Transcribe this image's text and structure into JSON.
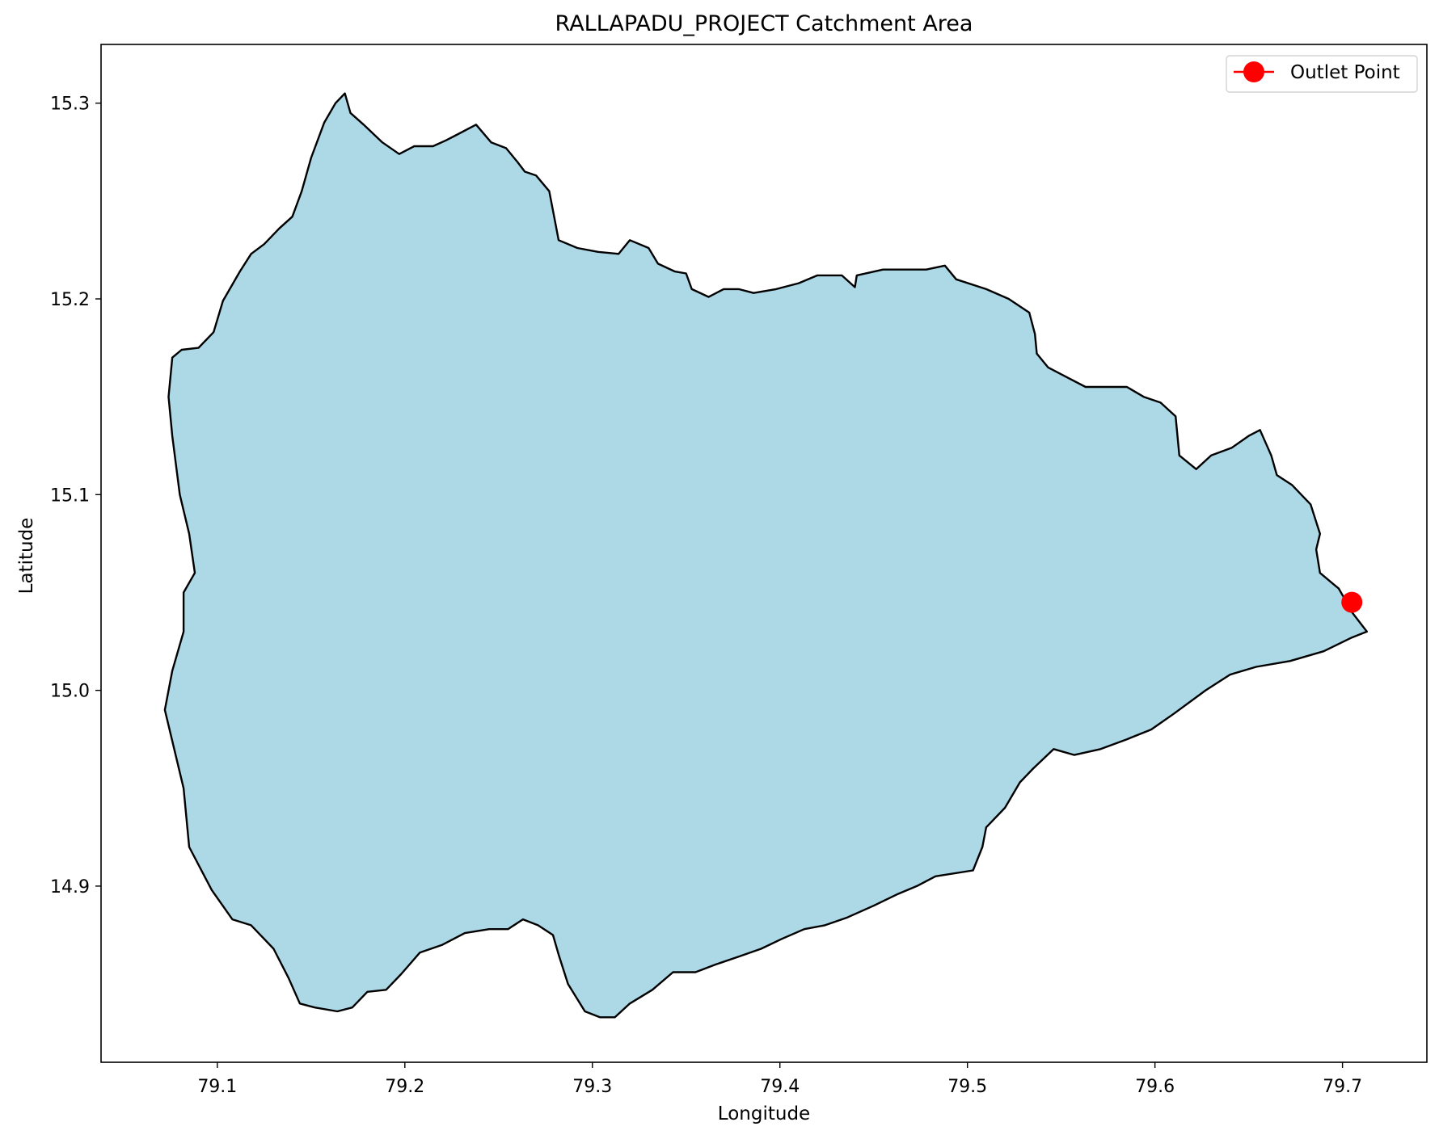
{
  "title": "RALLAPADU_PROJECT Catchment Area",
  "xlabel": "Longitude",
  "ylabel": "Latitude",
  "legend": {
    "label": "Outlet Point",
    "placement": "top-right"
  },
  "colors": {
    "fill": "#add8e6",
    "outline": "#000000",
    "outlet": "#ff0000"
  },
  "chart_data": {
    "type": "map",
    "title": "RALLAPADU_PROJECT Catchment Area",
    "xlabel": "Longitude",
    "ylabel": "Latitude",
    "xlim": [
      79.038,
      79.745
    ],
    "ylim": [
      14.81,
      15.33
    ],
    "xticks": [
      79.1,
      79.2,
      79.3,
      79.4,
      79.5,
      79.6,
      79.7
    ],
    "xtick_labels": [
      "79.1",
      "79.2",
      "79.3",
      "79.4",
      "79.5",
      "79.6",
      "79.7"
    ],
    "yticks": [
      14.9,
      15.0,
      15.1,
      15.2,
      15.3
    ],
    "ytick_labels": [
      "14.9",
      "15.0",
      "15.1",
      "15.2",
      "15.3"
    ],
    "grid": false,
    "legend_placement": "top-right",
    "catchment_boundary": [
      [
        79.168,
        15.305
      ],
      [
        79.171,
        15.295
      ],
      [
        79.178,
        15.289
      ],
      [
        79.188,
        15.28
      ],
      [
        79.197,
        15.274
      ],
      [
        79.205,
        15.278
      ],
      [
        79.215,
        15.278
      ],
      [
        79.222,
        15.281
      ],
      [
        79.228,
        15.284
      ],
      [
        79.238,
        15.289
      ],
      [
        79.246,
        15.28
      ],
      [
        79.254,
        15.277
      ],
      [
        79.26,
        15.27
      ],
      [
        79.264,
        15.265
      ],
      [
        79.27,
        15.263
      ],
      [
        79.277,
        15.255
      ],
      [
        79.28,
        15.24
      ],
      [
        79.282,
        15.23
      ],
      [
        79.292,
        15.226
      ],
      [
        79.303,
        15.224
      ],
      [
        79.314,
        15.223
      ],
      [
        79.32,
        15.23
      ],
      [
        79.33,
        15.226
      ],
      [
        79.335,
        15.218
      ],
      [
        79.344,
        15.214
      ],
      [
        79.35,
        15.213
      ],
      [
        79.353,
        15.205
      ],
      [
        79.362,
        15.201
      ],
      [
        79.37,
        15.205
      ],
      [
        79.378,
        15.205
      ],
      [
        79.386,
        15.203
      ],
      [
        79.398,
        15.205
      ],
      [
        79.41,
        15.208
      ],
      [
        79.42,
        15.212
      ],
      [
        79.433,
        15.212
      ],
      [
        79.44,
        15.206
      ],
      [
        79.441,
        15.212
      ],
      [
        79.455,
        15.215
      ],
      [
        79.47,
        15.215
      ],
      [
        79.478,
        15.215
      ],
      [
        79.488,
        15.217
      ],
      [
        79.494,
        15.21
      ],
      [
        79.51,
        15.205
      ],
      [
        79.522,
        15.2
      ],
      [
        79.533,
        15.193
      ],
      [
        79.536,
        15.182
      ],
      [
        79.537,
        15.172
      ],
      [
        79.543,
        15.165
      ],
      [
        79.553,
        15.16
      ],
      [
        79.563,
        15.155
      ],
      [
        79.575,
        15.155
      ],
      [
        79.585,
        15.155
      ],
      [
        79.594,
        15.15
      ],
      [
        79.603,
        15.147
      ],
      [
        79.611,
        15.14
      ],
      [
        79.612,
        15.13
      ],
      [
        79.613,
        15.12
      ],
      [
        79.622,
        15.113
      ],
      [
        79.63,
        15.12
      ],
      [
        79.641,
        15.124
      ],
      [
        79.65,
        15.13
      ],
      [
        79.656,
        15.133
      ],
      [
        79.662,
        15.12
      ],
      [
        79.665,
        15.11
      ],
      [
        79.673,
        15.105
      ],
      [
        79.683,
        15.095
      ],
      [
        79.688,
        15.08
      ],
      [
        79.686,
        15.072
      ],
      [
        79.688,
        15.06
      ],
      [
        79.698,
        15.052
      ],
      [
        79.701,
        15.047
      ],
      [
        79.705,
        15.04
      ],
      [
        79.713,
        15.03
      ],
      [
        79.705,
        15.027
      ],
      [
        79.69,
        15.02
      ],
      [
        79.672,
        15.015
      ],
      [
        79.654,
        15.012
      ],
      [
        79.64,
        15.008
      ],
      [
        79.627,
        15.0
      ],
      [
        79.61,
        14.988
      ],
      [
        79.598,
        14.98
      ],
      [
        79.585,
        14.975
      ],
      [
        79.571,
        14.97
      ],
      [
        79.557,
        14.967
      ],
      [
        79.546,
        14.97
      ],
      [
        79.535,
        14.96
      ],
      [
        79.528,
        14.953
      ],
      [
        79.52,
        14.94
      ],
      [
        79.51,
        14.93
      ],
      [
        79.508,
        14.92
      ],
      [
        79.503,
        14.908
      ],
      [
        79.483,
        14.905
      ],
      [
        79.473,
        14.9
      ],
      [
        79.463,
        14.896
      ],
      [
        79.45,
        14.89
      ],
      [
        79.436,
        14.884
      ],
      [
        79.424,
        14.88
      ],
      [
        79.413,
        14.878
      ],
      [
        79.401,
        14.873
      ],
      [
        79.39,
        14.868
      ],
      [
        79.378,
        14.864
      ],
      [
        79.366,
        14.86
      ],
      [
        79.355,
        14.856
      ],
      [
        79.343,
        14.856
      ],
      [
        79.332,
        14.847
      ],
      [
        79.32,
        14.84
      ],
      [
        79.312,
        14.833
      ],
      [
        79.304,
        14.833
      ],
      [
        79.296,
        14.836
      ],
      [
        79.287,
        14.85
      ],
      [
        79.282,
        14.865
      ],
      [
        79.279,
        14.875
      ],
      [
        79.271,
        14.88
      ],
      [
        79.263,
        14.883
      ],
      [
        79.255,
        14.878
      ],
      [
        79.245,
        14.878
      ],
      [
        79.232,
        14.876
      ],
      [
        79.22,
        14.87
      ],
      [
        79.208,
        14.866
      ],
      [
        79.198,
        14.855
      ],
      [
        79.19,
        14.847
      ],
      [
        79.18,
        14.846
      ],
      [
        79.172,
        14.838
      ],
      [
        79.164,
        14.836
      ],
      [
        79.152,
        14.838
      ],
      [
        79.144,
        14.84
      ],
      [
        79.138,
        14.853
      ],
      [
        79.13,
        14.868
      ],
      [
        79.118,
        14.88
      ],
      [
        79.108,
        14.883
      ],
      [
        79.097,
        14.898
      ],
      [
        79.085,
        14.92
      ],
      [
        79.082,
        14.95
      ],
      [
        79.077,
        14.97
      ],
      [
        79.072,
        14.99
      ],
      [
        79.076,
        15.01
      ],
      [
        79.082,
        15.03
      ],
      [
        79.082,
        15.05
      ],
      [
        79.088,
        15.06
      ],
      [
        79.085,
        15.08
      ],
      [
        79.08,
        15.1
      ],
      [
        79.076,
        15.13
      ],
      [
        79.074,
        15.15
      ],
      [
        79.076,
        15.17
      ],
      [
        79.081,
        15.174
      ],
      [
        79.09,
        15.175
      ],
      [
        79.098,
        15.183
      ],
      [
        79.103,
        15.199
      ],
      [
        79.112,
        15.214
      ],
      [
        79.118,
        15.223
      ],
      [
        79.125,
        15.228
      ],
      [
        79.133,
        15.236
      ],
      [
        79.14,
        15.242
      ],
      [
        79.145,
        15.255
      ],
      [
        79.15,
        15.272
      ],
      [
        79.157,
        15.29
      ],
      [
        79.163,
        15.3
      ],
      [
        79.168,
        15.305
      ]
    ],
    "outlet_point": {
      "lon": 79.705,
      "lat": 15.045
    }
  }
}
